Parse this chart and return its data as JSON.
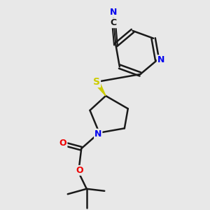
{
  "background_color": "#e8e8e8",
  "bond_color": "#1a1a1a",
  "atom_colors": {
    "N": "#0000ee",
    "O": "#ee0000",
    "S": "#cccc00",
    "CN_N": "#0000ee"
  }
}
